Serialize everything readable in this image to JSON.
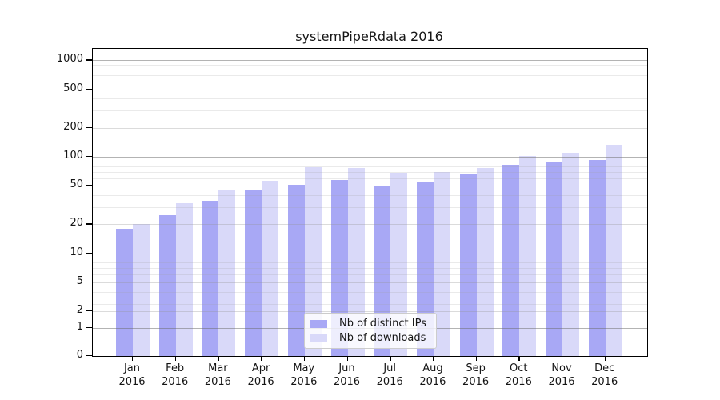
{
  "chart_data": {
    "type": "bar",
    "title": "systemPipeRdata 2016",
    "xlabel": "",
    "ylabel": "",
    "year": "2016",
    "categories": [
      "Jan",
      "Feb",
      "Mar",
      "Apr",
      "May",
      "Jun",
      "Jul",
      "Aug",
      "Sep",
      "Oct",
      "Nov",
      "Dec"
    ],
    "series": [
      {
        "name": "Nb of distinct IPs",
        "color": "#a8a8f5",
        "values": [
          18,
          25,
          35,
          46,
          51,
          58,
          49,
          55,
          67,
          82,
          88,
          93
        ]
      },
      {
        "name": "Nb of downloads",
        "color": "#d9d9f9",
        "values": [
          20,
          33,
          45,
          56,
          78,
          76,
          68,
          70,
          76,
          102,
          110,
          132
        ]
      }
    ],
    "y_ticks": [
      0,
      1,
      2,
      5,
      10,
      20,
      50,
      100,
      200,
      500,
      1000
    ],
    "y_scale": "log-like (custom: log above 5, compressed 0-2)",
    "ylim": [
      0,
      1300
    ],
    "grid": true,
    "legend_position": "inside bottom-center"
  }
}
